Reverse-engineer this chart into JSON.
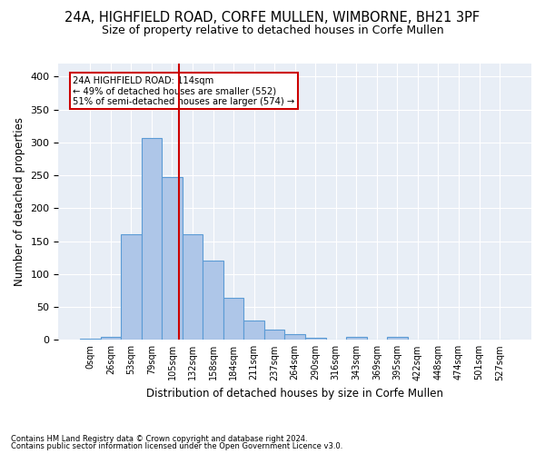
{
  "title1": "24A, HIGHFIELD ROAD, CORFE MULLEN, WIMBORNE, BH21 3PF",
  "title2": "Size of property relative to detached houses in Corfe Mullen",
  "xlabel": "Distribution of detached houses by size in Corfe Mullen",
  "ylabel": "Number of detached properties",
  "footnote1": "Contains HM Land Registry data © Crown copyright and database right 2024.",
  "footnote2": "Contains public sector information licensed under the Open Government Licence v3.0.",
  "bar_labels": [
    "0sqm",
    "26sqm",
    "53sqm",
    "79sqm",
    "105sqm",
    "132sqm",
    "158sqm",
    "184sqm",
    "211sqm",
    "237sqm",
    "264sqm",
    "290sqm",
    "316sqm",
    "343sqm",
    "369sqm",
    "395sqm",
    "422sqm",
    "448sqm",
    "474sqm",
    "501sqm",
    "527sqm"
  ],
  "bar_heights": [
    2,
    5,
    160,
    307,
    247,
    160,
    121,
    64,
    30,
    15,
    9,
    3,
    0,
    4,
    0,
    4,
    0,
    0,
    0,
    0,
    0
  ],
  "bar_color": "#aec6e8",
  "bar_edgecolor": "#5b9bd5",
  "bar_width": 1.0,
  "vline_color": "#cc0000",
  "ylim": [
    0,
    420
  ],
  "yticks": [
    0,
    50,
    100,
    150,
    200,
    250,
    300,
    350,
    400
  ],
  "annotation_text": "24A HIGHFIELD ROAD: 114sqm\n← 49% of detached houses are smaller (552)\n51% of semi-detached houses are larger (574) →",
  "annotation_box_color": "#cc0000",
  "background_color": "#e8eef6",
  "grid_color": "#ffffff",
  "title_fontsize": 10.5,
  "subtitle_fontsize": 9,
  "axis_label_fontsize": 8.5,
  "footnote_fontsize": 6,
  "property_sqm": 114,
  "bin_starts": [
    0,
    26,
    53,
    79,
    105,
    132,
    158,
    184,
    211,
    237,
    264,
    290,
    316,
    343,
    369,
    395,
    422,
    448,
    474,
    501,
    527
  ]
}
